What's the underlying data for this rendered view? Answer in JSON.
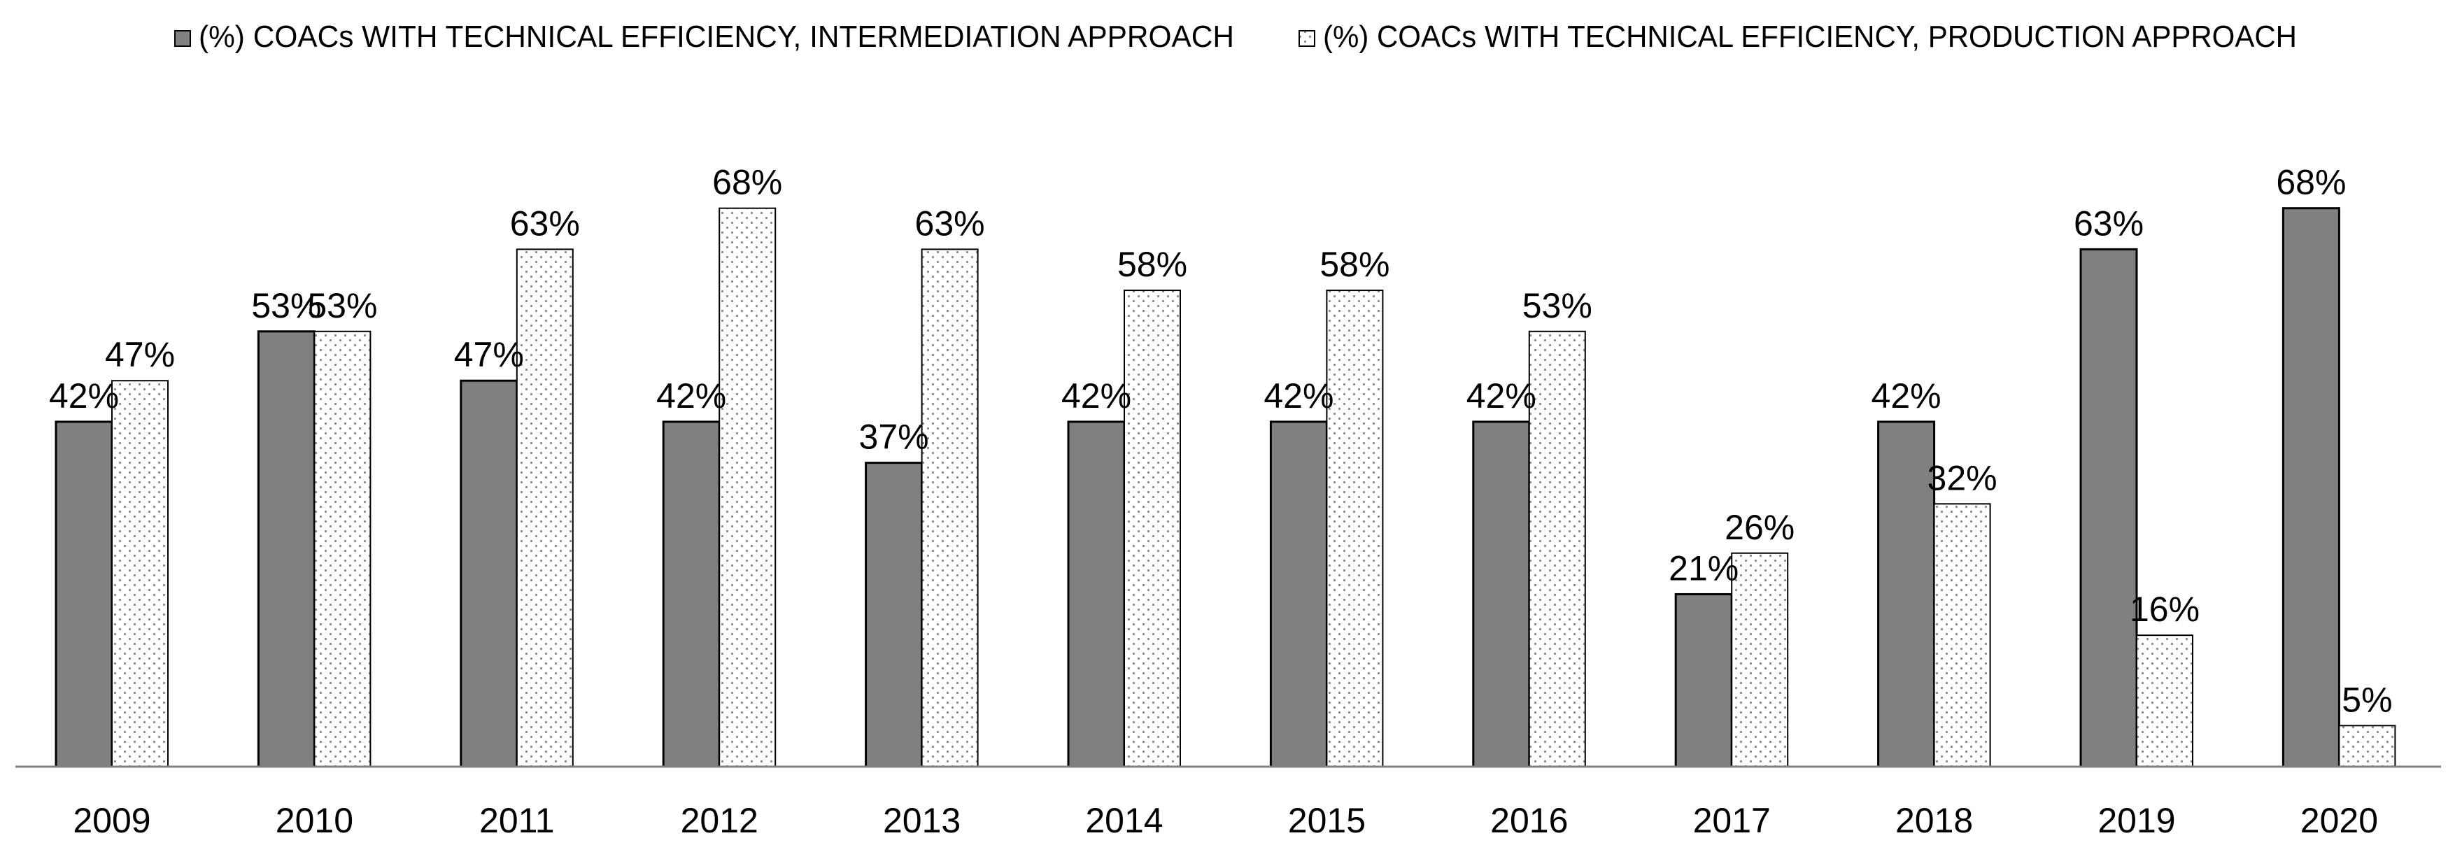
{
  "chart_data": {
    "type": "bar",
    "title": "",
    "xlabel": "",
    "ylabel": "",
    "ylim": [
      0,
      70
    ],
    "grid": false,
    "legend_position": "top-center",
    "categories": [
      "2009",
      "2010",
      "2011",
      "2012",
      "2013",
      "2014",
      "2015",
      "2016",
      "2017",
      "2018",
      "2019",
      "2020"
    ],
    "series": [
      {
        "name": "(%) COACs WITH TECHNICAL EFFICIENCY, INTERMEDIATION APPROACH",
        "pattern": "solid",
        "fill": "#808080",
        "values": [
          42,
          53,
          47,
          42,
          37,
          42,
          42,
          42,
          21,
          42,
          63,
          68
        ],
        "labels": [
          "42%",
          "53%",
          "47%",
          "42%",
          "37%",
          "42%",
          "42%",
          "42%",
          "21%",
          "42%",
          "63%",
          "68%"
        ]
      },
      {
        "name": "(%) COACs WITH TECHNICAL EFFICIENCY, PRODUCTION APPROACH",
        "pattern": "dotted",
        "fill": "#ffffff",
        "dot_color": "#8a8a8a",
        "values": [
          47,
          53,
          63,
          68,
          63,
          58,
          58,
          53,
          26,
          32,
          16,
          5
        ],
        "labels": [
          "47%",
          "53%",
          "63%",
          "68%",
          "63%",
          "58%",
          "58%",
          "53%",
          "26%",
          "32%",
          "16%",
          "5%"
        ]
      }
    ]
  }
}
